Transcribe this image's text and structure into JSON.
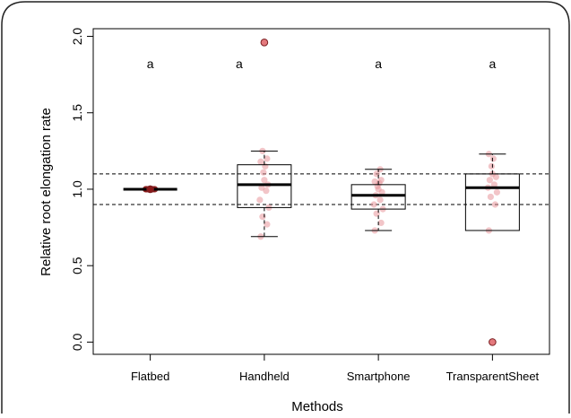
{
  "chart_data": {
    "type": "box",
    "title": "",
    "xlabel": "Methods",
    "ylabel": "Relative root elongation rate",
    "categories": [
      "Flatbed",
      "Handheld",
      "Smartphone",
      "TransparentSheet"
    ],
    "ylim": [
      -0.08,
      2.05
    ],
    "yticks": [
      0.0,
      0.5,
      1.0,
      1.5,
      2.0
    ],
    "ytick_labels": [
      "0.0",
      "0.5",
      "1.0",
      "1.5",
      "2.0"
    ],
    "grid": false,
    "reference_lines": [
      0.9,
      1.1
    ],
    "group_letters": [
      "a",
      "a",
      "a",
      "a"
    ],
    "letter_y": 1.82,
    "boxes": [
      {
        "category": "Flatbed",
        "whisker_low": 1.0,
        "q1": 1.0,
        "median": 1.0,
        "q3": 1.0,
        "whisker_high": 1.0,
        "outliers": [
          1.0
        ],
        "points": [
          1.0,
          1.0,
          1.0,
          1.0,
          1.0
        ]
      },
      {
        "category": "Handheld",
        "whisker_low": 0.69,
        "q1": 0.88,
        "median": 1.03,
        "q3": 1.16,
        "whisker_high": 1.25,
        "outliers": [
          1.96
        ],
        "points": [
          0.69,
          0.77,
          0.82,
          0.88,
          0.93,
          0.99,
          1.01,
          1.03,
          1.06,
          1.11,
          1.15,
          1.18,
          1.2,
          1.25
        ]
      },
      {
        "category": "Smartphone",
        "whisker_low": 0.73,
        "q1": 0.87,
        "median": 0.96,
        "q3": 1.03,
        "whisker_high": 1.13,
        "outliers": [],
        "points": [
          0.73,
          0.78,
          0.84,
          0.87,
          0.9,
          0.93,
          0.96,
          0.98,
          1.0,
          1.02,
          1.04,
          1.05,
          1.06,
          1.1,
          1.13
        ]
      },
      {
        "category": "TransparentSheet",
        "whisker_low": 0.73,
        "q1": 0.73,
        "median": 1.01,
        "q3": 1.1,
        "whisker_high": 1.23,
        "outliers": [
          0.0
        ],
        "points": [
          0.73,
          0.9,
          0.95,
          0.98,
          1.01,
          1.03,
          1.06,
          1.08,
          1.1,
          1.15,
          1.2,
          1.23
        ]
      }
    ],
    "colors": {
      "point": "#e8959a",
      "outlier_fill": "#e4797d",
      "outlier_stroke": "#7a1f22",
      "flatbed_dot": "#8b1a1a"
    }
  }
}
